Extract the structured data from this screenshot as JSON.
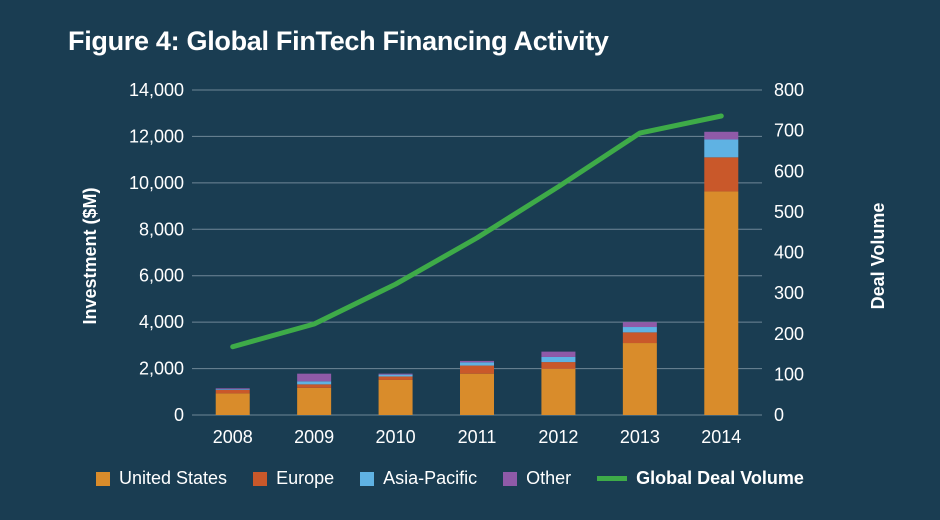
{
  "title": "Figure 4: Global FinTech Financing Activity",
  "chart_data": {
    "type": "bar",
    "stacked": true,
    "categories": [
      "2008",
      "2009",
      "2010",
      "2011",
      "2012",
      "2013",
      "2014"
    ],
    "series": [
      {
        "name": "United States",
        "color": "#d98c2b",
        "values": [
          930,
          1170,
          1510,
          1780,
          1990,
          3100,
          9630
        ]
      },
      {
        "name": "Europe",
        "color": "#c9582a",
        "values": [
          150,
          150,
          150,
          350,
          290,
          460,
          1470
        ]
      },
      {
        "name": "Asia-Pacific",
        "color": "#5fb2e3",
        "values": [
          30,
          130,
          80,
          140,
          220,
          230,
          770
        ]
      },
      {
        "name": "Other",
        "color": "#8f5aa8",
        "values": [
          40,
          330,
          40,
          60,
          230,
          210,
          330
        ]
      }
    ],
    "line_series": {
      "name": "Global Deal Volume",
      "color": "#3eab48",
      "axis": "right",
      "values": [
        168,
        224,
        322,
        436,
        562,
        694,
        736
      ]
    },
    "ylabel": "Investment ($M)",
    "ylabel_right": "Deal Volume",
    "ylim": [
      0,
      14000
    ],
    "ylim_right": [
      0,
      800
    ],
    "yticks": [
      "0",
      "2,000",
      "4,000",
      "6,000",
      "8,000",
      "10,000",
      "12,000",
      "14,000"
    ],
    "yticks_right": [
      "0",
      "100",
      "200",
      "300",
      "400",
      "500",
      "600",
      "700",
      "800"
    ],
    "grid": true,
    "legend_position": "bottom"
  }
}
